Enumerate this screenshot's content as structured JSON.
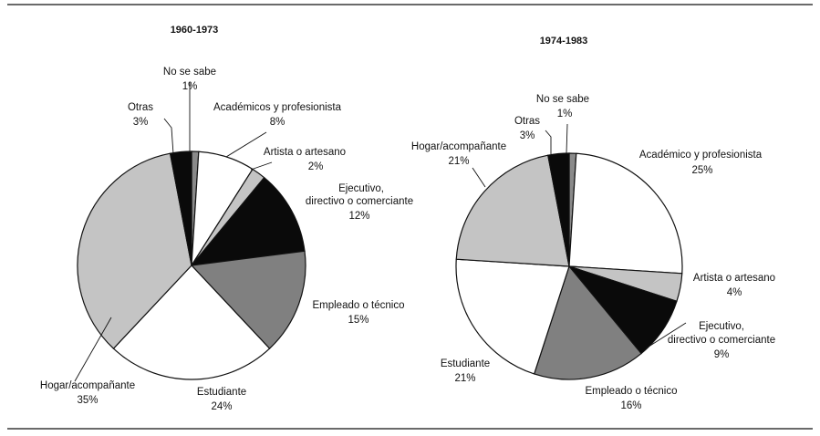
{
  "chart_data": [
    {
      "type": "pie",
      "title": "1960-1973",
      "start": "12 o'clock",
      "direction": "clockwise",
      "slices": [
        {
          "label": "No se sabe",
          "value": 1,
          "value_label": "1%",
          "color": "#8a8a8a"
        },
        {
          "label": "Académicos y profesionista",
          "value": 8,
          "value_label": "8%",
          "color": "#ffffff"
        },
        {
          "label": "Artista o artesano",
          "value": 2,
          "value_label": "2%",
          "color": "#c4c4c4"
        },
        {
          "label": "Ejecutivo, directivo o comerciante",
          "value": 12,
          "value_label": "12%",
          "color": "#0a0a0a"
        },
        {
          "label": "Empleado o técnico",
          "value": 15,
          "value_label": "15%",
          "color": "#808080"
        },
        {
          "label": "Estudiante",
          "value": 24,
          "value_label": "24%",
          "color": "#ffffff"
        },
        {
          "label": "Hogar/acompañante",
          "value": 35,
          "value_label": "35%",
          "color": "#c4c4c4"
        },
        {
          "label": "Otras",
          "value": 3,
          "value_label": "3%",
          "color": "#0a0a0a"
        }
      ]
    },
    {
      "type": "pie",
      "title": "1974-1983",
      "start": "12 o'clock",
      "direction": "clockwise",
      "slices": [
        {
          "label": "No se sabe",
          "value": 1,
          "value_label": "1%",
          "color": "#8a8a8a"
        },
        {
          "label": "Académico y profesionista",
          "value": 25,
          "value_label": "25%",
          "color": "#ffffff"
        },
        {
          "label": "Artista o artesano",
          "value": 4,
          "value_label": "4%",
          "color": "#c4c4c4"
        },
        {
          "label": "Ejecutivo, directivo o comerciante",
          "value": 9,
          "value_label": "9%",
          "color": "#0a0a0a"
        },
        {
          "label": "Empleado o técnico",
          "value": 16,
          "value_label": "16%",
          "color": "#808080"
        },
        {
          "label": "Estudiante",
          "value": 21,
          "value_label": "21%",
          "color": "#ffffff"
        },
        {
          "label": "Hogar/acompañante",
          "value": 21,
          "value_label": "21%",
          "color": "#c4c4c4"
        },
        {
          "label": "Otras",
          "value": 3,
          "value_label": "3%",
          "color": "#0a0a0a"
        }
      ]
    }
  ]
}
